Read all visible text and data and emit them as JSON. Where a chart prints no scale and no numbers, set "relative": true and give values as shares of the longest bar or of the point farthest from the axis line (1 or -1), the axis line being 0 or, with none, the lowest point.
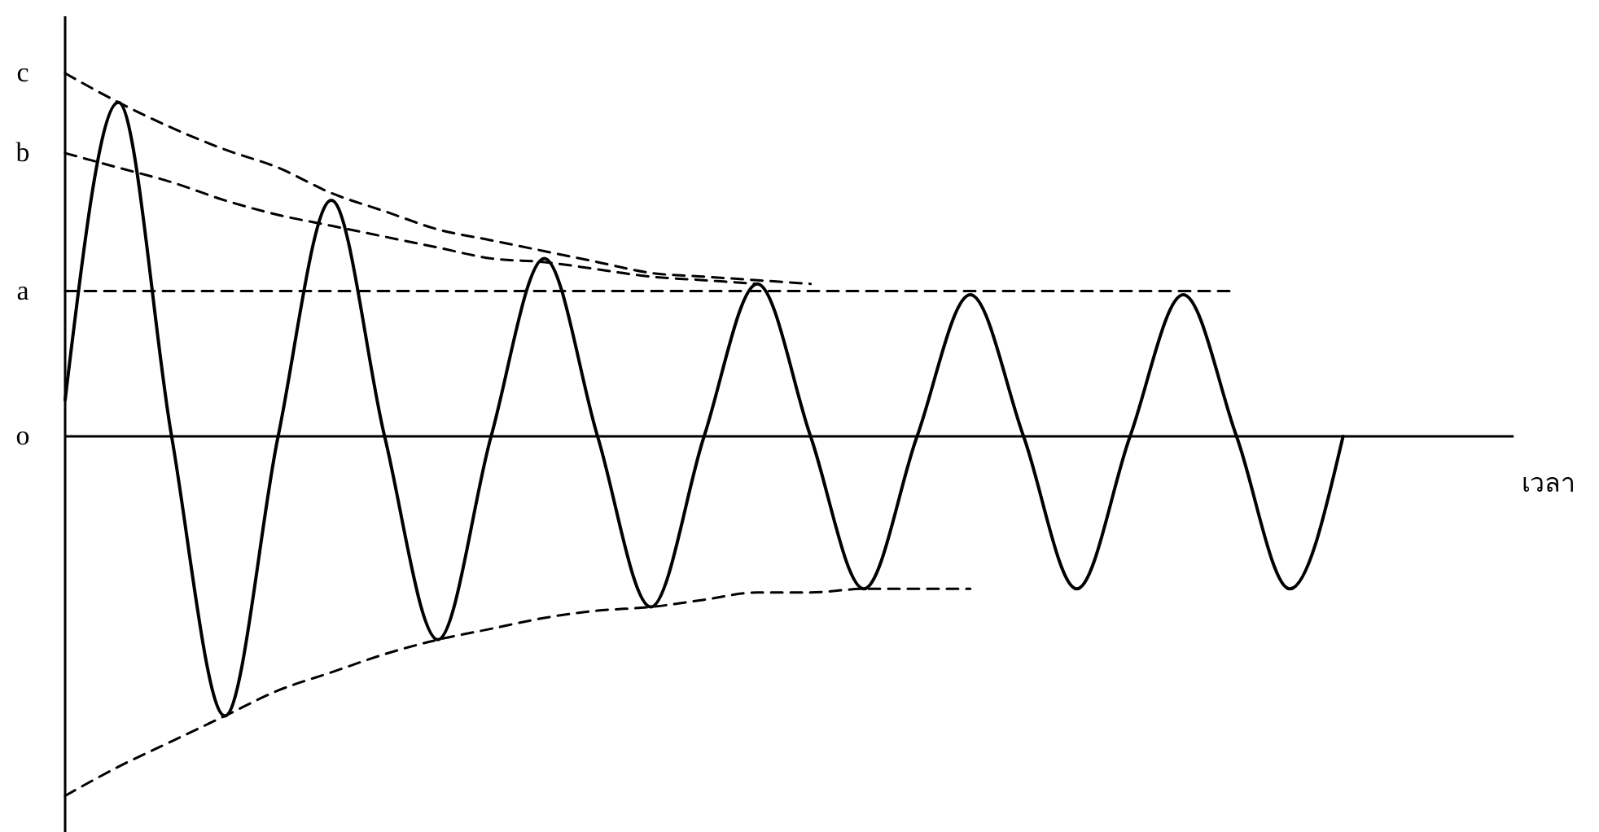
{
  "chart_data": {
    "type": "line",
    "relative": true,
    "xlabel": "เวลา",
    "categories": [
      null,
      null,
      null,
      null,
      null,
      null,
      null,
      null,
      null,
      null,
      null,
      null,
      null,
      null,
      null,
      null,
      null,
      null,
      null,
      null,
      null,
      null,
      null,
      null,
      null,
      null,
      null,
      null,
      null
    ],
    "series": [
      {
        "color": "#000000",
        "line_style": "solid",
        "values": [
          0.1,
          0.92,
          0,
          -0.77,
          0,
          0.65,
          0,
          -0.56,
          0,
          0.49,
          0,
          -0.47,
          0,
          0.42,
          0,
          -0.42,
          0,
          0.39,
          0,
          -0.42,
          0,
          0.39,
          0,
          -0.42,
          0,
          null,
          null,
          null,
          null
        ]
      },
      {
        "name": "c",
        "color": "#000000",
        "line_style": "dashed",
        "values": [
          1.0,
          0.92,
          0.85,
          0.79,
          0.74,
          0.67,
          0.62,
          0.57,
          0.54,
          0.51,
          0.48,
          0.45,
          0.44,
          0.43,
          0.42,
          null,
          null,
          null,
          null,
          null,
          null,
          null,
          null,
          null,
          null,
          null,
          null,
          null,
          null
        ]
      },
      {
        "name": "b",
        "color": "#000000",
        "line_style": "dashed",
        "values": [
          0.78,
          0.74,
          0.7,
          0.65,
          0.61,
          0.58,
          0.55,
          0.52,
          0.49,
          0.48,
          0.46,
          0.44,
          0.43,
          0.42,
          null,
          null,
          null,
          null,
          null,
          null,
          null,
          null,
          null,
          null,
          null,
          null,
          null,
          null,
          null
        ]
      },
      {
        "name": "a",
        "color": "#000000",
        "line_style": "dashed",
        "values": [
          0.4,
          0.4,
          0.4,
          0.4,
          0.4,
          0.4,
          0.4,
          0.4,
          0.4,
          0.4,
          0.4,
          0.4,
          0.4,
          0.4,
          0.4,
          0.4,
          0.4,
          0.4,
          0.4,
          0.4,
          0.4,
          0.4,
          0.4,
          null,
          null,
          null,
          null,
          null,
          null
        ]
      },
      {
        "color": "#000000",
        "line_style": "dashed",
        "values": [
          -0.99,
          -0.91,
          -0.84,
          -0.77,
          -0.7,
          -0.65,
          -0.6,
          -0.56,
          -0.53,
          -0.5,
          -0.48,
          -0.47,
          -0.45,
          -0.43,
          -0.43,
          -0.42,
          -0.42,
          -0.42,
          null,
          null,
          null,
          null,
          null,
          null,
          null,
          null,
          null,
          null,
          null
        ]
      }
    ],
    "annotations": [
      "o"
    ]
  }
}
